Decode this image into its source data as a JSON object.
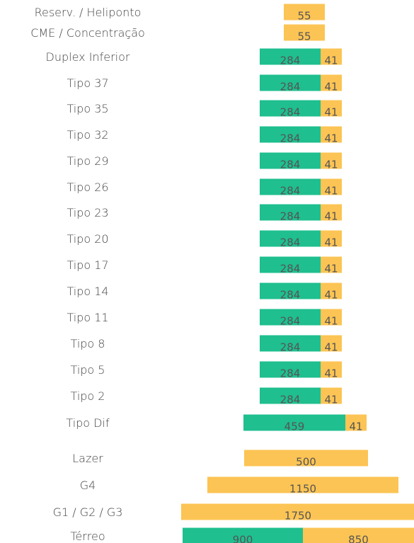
{
  "chart_data": {
    "type": "bar",
    "orientation": "horizontal",
    "stacked": true,
    "layout_note": "stacked segments centered on a common axis",
    "colors": {
      "green": "#1fbf8f",
      "yellow": "#fcc454"
    },
    "rows": [
      {
        "label": "Reserv. / Heliponto",
        "segments": [
          {
            "value": 55,
            "color": "yellow"
          }
        ]
      },
      {
        "label": "CME / Concentração",
        "segments": [
          {
            "value": 55,
            "color": "yellow"
          }
        ]
      },
      {
        "label": "Duplex Inferior",
        "segments": [
          {
            "value": 284,
            "color": "green"
          },
          {
            "value": 41,
            "color": "yellow"
          }
        ]
      },
      {
        "label": "Tipo 37",
        "segments": [
          {
            "value": 284,
            "color": "green"
          },
          {
            "value": 41,
            "color": "yellow"
          }
        ]
      },
      {
        "label": "Tipo 35",
        "segments": [
          {
            "value": 284,
            "color": "green"
          },
          {
            "value": 41,
            "color": "yellow"
          }
        ]
      },
      {
        "label": "Tipo 32",
        "segments": [
          {
            "value": 284,
            "color": "green"
          },
          {
            "value": 41,
            "color": "yellow"
          }
        ]
      },
      {
        "label": "Tipo 29",
        "segments": [
          {
            "value": 284,
            "color": "green"
          },
          {
            "value": 41,
            "color": "yellow"
          }
        ]
      },
      {
        "label": "Tipo 26",
        "segments": [
          {
            "value": 284,
            "color": "green"
          },
          {
            "value": 41,
            "color": "yellow"
          }
        ]
      },
      {
        "label": "Tipo 23",
        "segments": [
          {
            "value": 284,
            "color": "green"
          },
          {
            "value": 41,
            "color": "yellow"
          }
        ]
      },
      {
        "label": "Tipo 20",
        "segments": [
          {
            "value": 284,
            "color": "green"
          },
          {
            "value": 41,
            "color": "yellow"
          }
        ]
      },
      {
        "label": "Tipo 17",
        "segments": [
          {
            "value": 284,
            "color": "green"
          },
          {
            "value": 41,
            "color": "yellow"
          }
        ]
      },
      {
        "label": "Tipo 14",
        "segments": [
          {
            "value": 284,
            "color": "green"
          },
          {
            "value": 41,
            "color": "yellow"
          }
        ]
      },
      {
        "label": "Tipo 11",
        "segments": [
          {
            "value": 284,
            "color": "green"
          },
          {
            "value": 41,
            "color": "yellow"
          }
        ]
      },
      {
        "label": "Tipo 8",
        "segments": [
          {
            "value": 284,
            "color": "green"
          },
          {
            "value": 41,
            "color": "yellow"
          }
        ]
      },
      {
        "label": "Tipo 5",
        "segments": [
          {
            "value": 284,
            "color": "green"
          },
          {
            "value": 41,
            "color": "yellow"
          }
        ]
      },
      {
        "label": "Tipo 2",
        "segments": [
          {
            "value": 284,
            "color": "green"
          },
          {
            "value": 41,
            "color": "yellow"
          }
        ]
      },
      {
        "label": "Tipo Dif",
        "segments": [
          {
            "value": 459,
            "color": "green"
          },
          {
            "value": 41,
            "color": "yellow"
          }
        ]
      },
      {
        "label": "Lazer",
        "segments": [
          {
            "value": 500,
            "color": "yellow"
          }
        ]
      },
      {
        "label": "G4",
        "segments": [
          {
            "value": 1150,
            "color": "yellow"
          }
        ]
      },
      {
        "label": "G1 / G2 / G3",
        "segments": [
          {
            "value": 1750,
            "color": "yellow"
          }
        ]
      },
      {
        "label": "Térreo",
        "segments": [
          {
            "value": 900,
            "color": "green"
          },
          {
            "value": 850,
            "color": "yellow"
          }
        ]
      }
    ]
  }
}
